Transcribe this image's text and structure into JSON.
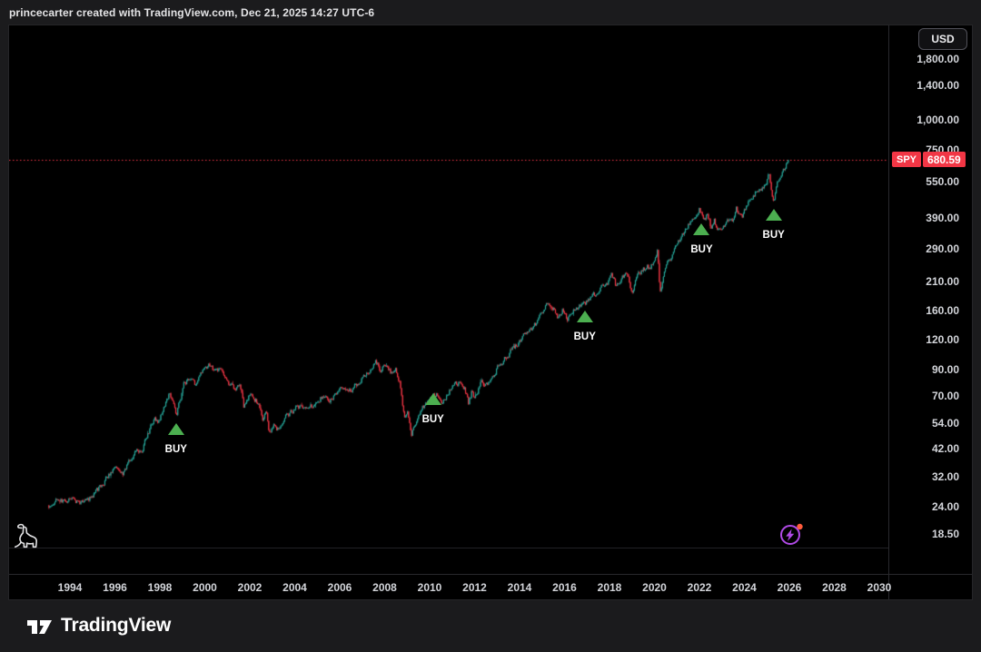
{
  "header": {
    "attribution": "princecarter created with TradingView.com, Dec 21, 2025 14:27 UTC-6"
  },
  "footer": {
    "brand": "TradingView"
  },
  "price_scale": {
    "currency_button": "USD"
  },
  "chart_data": {
    "type": "candlestick",
    "symbol": "SPY",
    "currency": "USD",
    "price_scale_type": "log",
    "current_price": 680.59,
    "current_price_label": "680.59",
    "colors": {
      "up": "#26a69a",
      "down": "#f23645",
      "buy": "#4caf50",
      "price_line": "#f23645",
      "badge_bg": "#f23645",
      "badge_text": "#ffffff",
      "spark": "#b04ae6",
      "spark_dot": "#ff5b3c"
    },
    "y_axis": {
      "side": "right",
      "ticks": [
        {
          "value": 1800,
          "label": "1,800.00"
        },
        {
          "value": 1400,
          "label": "1,400.00"
        },
        {
          "value": 1000,
          "label": "1,000.00"
        },
        {
          "value": 750,
          "label": "750.00"
        },
        {
          "value": 550,
          "label": "550.00"
        },
        {
          "value": 390,
          "label": "390.00"
        },
        {
          "value": 290,
          "label": "290.00"
        },
        {
          "value": 210,
          "label": "210.00"
        },
        {
          "value": 160,
          "label": "160.00"
        },
        {
          "value": 120,
          "label": "120.00"
        },
        {
          "value": 90,
          "label": "90.00"
        },
        {
          "value": 70,
          "label": "70.00"
        },
        {
          "value": 54,
          "label": "54.00"
        },
        {
          "value": 42,
          "label": "42.00"
        },
        {
          "value": 32,
          "label": "32.00"
        },
        {
          "value": 24,
          "label": "24.00"
        },
        {
          "value": 18.5,
          "label": "18.50"
        }
      ]
    },
    "x_axis": {
      "ticks": [
        {
          "value": 1994,
          "label": "1994"
        },
        {
          "value": 1996,
          "label": "1996"
        },
        {
          "value": 1998,
          "label": "1998"
        },
        {
          "value": 2000,
          "label": "2000"
        },
        {
          "value": 2002,
          "label": "2002"
        },
        {
          "value": 2004,
          "label": "2004"
        },
        {
          "value": 2006,
          "label": "2006"
        },
        {
          "value": 2008,
          "label": "2008"
        },
        {
          "value": 2010,
          "label": "2010"
        },
        {
          "value": 2012,
          "label": "2012"
        },
        {
          "value": 2014,
          "label": "2014"
        },
        {
          "value": 2016,
          "label": "2016"
        },
        {
          "value": 2018,
          "label": "2018"
        },
        {
          "value": 2020,
          "label": "2020"
        },
        {
          "value": 2022,
          "label": "2022"
        },
        {
          "value": 2024,
          "label": "2024"
        },
        {
          "value": 2026,
          "label": "2026"
        },
        {
          "value": 2028,
          "label": "2028"
        },
        {
          "value": 2030,
          "label": "2030"
        }
      ]
    },
    "series_keypoints": [
      [
        1993.05,
        24.4
      ],
      [
        1993.45,
        25.8
      ],
      [
        1993.75,
        25.2
      ],
      [
        1994.1,
        25.6
      ],
      [
        1994.45,
        24.6
      ],
      [
        1994.95,
        26.3
      ],
      [
        1995.5,
        30.6
      ],
      [
        1996.0,
        34.9
      ],
      [
        1996.35,
        33.5
      ],
      [
        1996.9,
        42
      ],
      [
        1997.15,
        41
      ],
      [
        1997.45,
        49
      ],
      [
        1997.75,
        56
      ],
      [
        1997.9,
        53
      ],
      [
        1998.15,
        63
      ],
      [
        1998.42,
        72.2
      ],
      [
        1998.72,
        57.5
      ],
      [
        1999.05,
        78
      ],
      [
        1999.35,
        82
      ],
      [
        1999.55,
        78
      ],
      [
        1999.9,
        89
      ],
      [
        2000.2,
        94.1
      ],
      [
        2000.45,
        88
      ],
      [
        2000.7,
        92
      ],
      [
        2001.05,
        78
      ],
      [
        2001.35,
        74
      ],
      [
        2001.55,
        80
      ],
      [
        2001.72,
        62
      ],
      [
        2002.05,
        72
      ],
      [
        2002.4,
        65
      ],
      [
        2002.57,
        56
      ],
      [
        2002.72,
        60
      ],
      [
        2002.85,
        48.6
      ],
      [
        2003.05,
        54
      ],
      [
        2003.2,
        50.5
      ],
      [
        2003.65,
        58
      ],
      [
        2004.1,
        63
      ],
      [
        2004.5,
        61
      ],
      [
        2004.95,
        66
      ],
      [
        2005.25,
        70
      ],
      [
        2005.55,
        67
      ],
      [
        2006.1,
        76
      ],
      [
        2006.5,
        73
      ],
      [
        2007.0,
        85
      ],
      [
        2007.4,
        92
      ],
      [
        2007.6,
        98
      ],
      [
        2007.78,
        90
      ],
      [
        2008.0,
        97
      ],
      [
        2008.25,
        88
      ],
      [
        2008.45,
        92
      ],
      [
        2008.65,
        80
      ],
      [
        2008.85,
        57
      ],
      [
        2009.0,
        62
      ],
      [
        2009.17,
        48.6
      ],
      [
        2009.55,
        60
      ],
      [
        2009.95,
        67
      ],
      [
        2010.3,
        72
      ],
      [
        2010.5,
        64
      ],
      [
        2010.95,
        76
      ],
      [
        2011.3,
        80
      ],
      [
        2011.55,
        76
      ],
      [
        2011.72,
        65
      ],
      [
        2011.85,
        72
      ],
      [
        2011.95,
        68
      ],
      [
        2012.3,
        80
      ],
      [
        2012.45,
        76
      ],
      [
        2012.75,
        84
      ],
      [
        2013.1,
        95
      ],
      [
        2013.6,
        108
      ],
      [
        2014.1,
        122
      ],
      [
        2014.7,
        140
      ],
      [
        2015.15,
        169
      ],
      [
        2015.5,
        162
      ],
      [
        2015.68,
        147
      ],
      [
        2015.9,
        160
      ],
      [
        2016.12,
        146
      ],
      [
        2016.6,
        166
      ],
      [
        2016.95,
        174
      ],
      [
        2017.4,
        188
      ],
      [
        2017.9,
        210
      ],
      [
        2018.07,
        232
      ],
      [
        2018.25,
        205
      ],
      [
        2018.6,
        222
      ],
      [
        2018.78,
        230
      ],
      [
        2018.98,
        194
      ],
      [
        2019.35,
        230
      ],
      [
        2019.65,
        244
      ],
      [
        2019.8,
        238
      ],
      [
        2020.12,
        284
      ],
      [
        2020.23,
        192
      ],
      [
        2020.5,
        242
      ],
      [
        2020.75,
        265
      ],
      [
        2021.05,
        312
      ],
      [
        2021.4,
        348
      ],
      [
        2021.75,
        398
      ],
      [
        2021.98,
        425
      ],
      [
        2022.2,
        388
      ],
      [
        2022.35,
        408
      ],
      [
        2022.52,
        348
      ],
      [
        2022.65,
        382
      ],
      [
        2022.8,
        338
      ],
      [
        2023.05,
        365
      ],
      [
        2023.3,
        378
      ],
      [
        2023.45,
        372
      ],
      [
        2023.62,
        428
      ],
      [
        2023.87,
        392
      ],
      [
        2024.15,
        452
      ],
      [
        2024.42,
        488
      ],
      [
        2024.6,
        515
      ],
      [
        2024.75,
        500
      ],
      [
        2024.98,
        556
      ],
      [
        2025.1,
        592
      ],
      [
        2025.28,
        458
      ],
      [
        2025.5,
        562
      ],
      [
        2025.72,
        625
      ],
      [
        2025.88,
        655
      ],
      [
        2025.97,
        680.59
      ]
    ],
    "buy_signals": [
      {
        "year": 1998.72,
        "price": 50.5,
        "label": "BUY"
      },
      {
        "year": 2010.15,
        "price": 67.5,
        "label": "BUY"
      },
      {
        "year": 2016.9,
        "price": 150.5,
        "label": "BUY"
      },
      {
        "year": 2022.1,
        "price": 347,
        "label": "BUY"
      },
      {
        "year": 2025.3,
        "price": 399,
        "label": "BUY"
      }
    ],
    "icons": {
      "dinosaur": "dinosaur-sticker",
      "spark": "ai-spark-button"
    }
  }
}
